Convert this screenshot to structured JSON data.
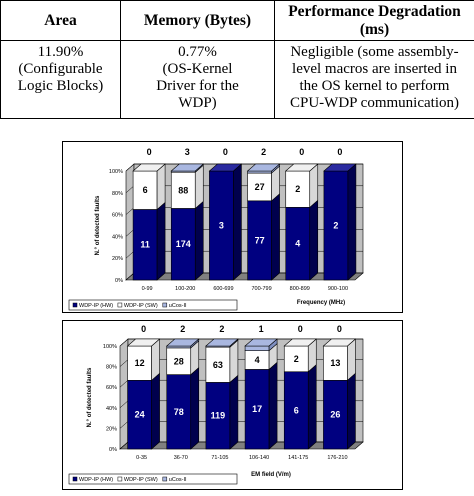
{
  "table": {
    "headers": {
      "area": "Area",
      "memory": "Memory (Bytes)",
      "perf": [
        "Performance Degradation",
        "(ms)"
      ]
    },
    "row": {
      "area": [
        "11.90%",
        "(Configurable",
        "Logic Blocks)"
      ],
      "memory": [
        "0.77%",
        "(OS-Kernel",
        "Driver for the",
        "WDP)"
      ],
      "perf": [
        "Negligible (some assembly-",
        "level macros are inserted in",
        "the OS kernel to perform",
        "CPU-WDP communication)"
      ]
    }
  },
  "colors": {
    "hw": "#000080",
    "sw": "#ffffff",
    "ucos": "#a9b7e0",
    "bar_outline": "#000000",
    "panel": "#c0c0c0"
  },
  "chart_data": [
    {
      "type": "bar",
      "stacked": "percent",
      "title": "",
      "xlabel": "Frequency (MHz)",
      "ylabel": "N.° of detected faults",
      "ylim": [
        0,
        100
      ],
      "yticks": [
        "0%",
        "20%",
        "40%",
        "60%",
        "80%",
        "100%"
      ],
      "categories": [
        "0-99",
        "100-200",
        "600-699",
        "700-799",
        "800-899",
        "900-100"
      ],
      "series": [
        {
          "name": "WDP-IP (HW)",
          "values": [
            11,
            174,
            3,
            77,
            4,
            2
          ]
        },
        {
          "name": "WDP-IP (SW)",
          "values": [
            6,
            88,
            0,
            27,
            2,
            0
          ]
        },
        {
          "name": "uCos-II",
          "values": [
            0,
            3,
            0,
            2,
            0,
            0
          ]
        }
      ],
      "legend_position": "bottom-left"
    },
    {
      "type": "bar",
      "stacked": "percent",
      "title": "",
      "xlabel": "EM field (V/m)",
      "ylabel": "N.° of detected faults",
      "ylim": [
        0,
        100
      ],
      "yticks": [
        "0%",
        "20%",
        "40%",
        "60%",
        "80%",
        "100%"
      ],
      "categories": [
        "0-35",
        "36-70",
        "71-105",
        "106-140",
        "141-175",
        "176-210"
      ],
      "series": [
        {
          "name": "WDP-IP (HW)",
          "values": [
            24,
            78,
            119,
            17,
            6,
            26
          ]
        },
        {
          "name": "WDP-IP (SW)",
          "values": [
            12,
            28,
            63,
            4,
            2,
            13
          ]
        },
        {
          "name": "uCos-II",
          "values": [
            0,
            2,
            2,
            1,
            0,
            0
          ]
        }
      ],
      "legend_position": "bottom-left"
    }
  ]
}
